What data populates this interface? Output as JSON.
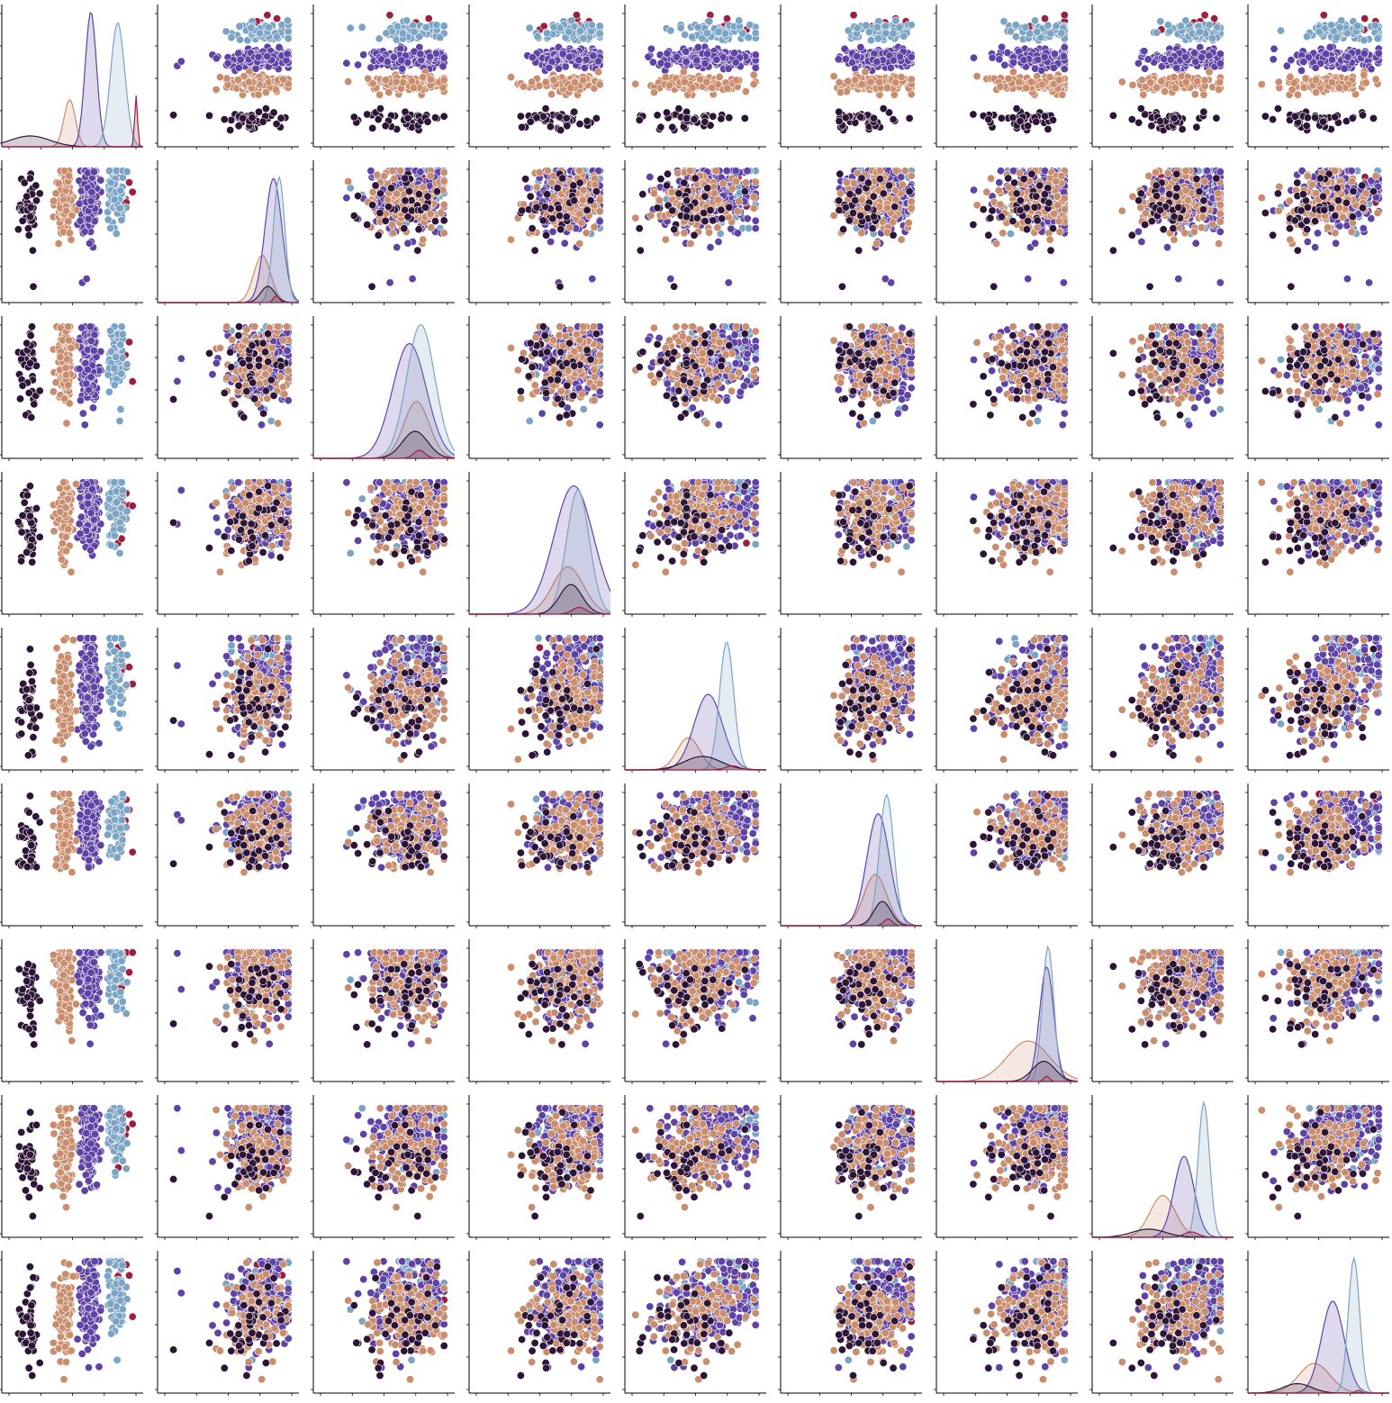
{
  "chart_data": {
    "type": "pairplot",
    "grid_size": 9,
    "variables": [
      "",
      "",
      "",
      "",
      "",
      "",
      "",
      "",
      ""
    ],
    "title": "",
    "axes": {
      "tick_labels_visible": false,
      "ticks_visible": true,
      "spines": [
        "left",
        "bottom"
      ],
      "grid": false
    },
    "hue": {
      "legend_visible": false,
      "palette": [
        "#2d1537",
        "#c98c6c",
        "#5e43a5",
        "#7ba3c4",
        "#9c1f3f"
      ],
      "group_weights": [
        0.08,
        0.27,
        0.45,
        0.18,
        0.02
      ],
      "group_levels": [
        0.12,
        0.43,
        0.66,
        0.9,
        0.99
      ]
    },
    "diagonal": {
      "kind": "kde",
      "fill": true,
      "fill_opacity": 0.2,
      "panels": [
        {
          "peaks": [
            0.2,
            0.48,
            0.63,
            0.82,
            0.95
          ],
          "widths": [
            0.14,
            0.04,
            0.04,
            0.05,
            0.01
          ],
          "heights": [
            0.08,
            0.35,
            1.0,
            0.92,
            0.38
          ]
        },
        {
          "peaks": [
            0.78,
            0.74,
            0.82,
            0.86,
            0.84
          ],
          "widths": [
            0.05,
            0.06,
            0.06,
            0.04,
            0.02
          ],
          "heights": [
            0.12,
            0.35,
            0.92,
            0.93,
            0.05
          ]
        },
        {
          "peaks": [
            0.72,
            0.73,
            0.68,
            0.76,
            0.75
          ],
          "widths": [
            0.09,
            0.09,
            0.12,
            0.1,
            0.04
          ],
          "heights": [
            0.2,
            0.42,
            0.85,
            0.99,
            0.06
          ]
        },
        {
          "peaks": [
            0.72,
            0.7,
            0.74,
            0.77,
            0.78
          ],
          "widths": [
            0.08,
            0.11,
            0.14,
            0.08,
            0.05
          ],
          "heights": [
            0.22,
            0.35,
            0.95,
            0.92,
            0.05
          ]
        },
        {
          "peaks": [
            0.55,
            0.45,
            0.59,
            0.72,
            0.76
          ],
          "widths": [
            0.13,
            0.08,
            0.1,
            0.05,
            0.05
          ],
          "heights": [
            0.1,
            0.24,
            0.56,
            0.95,
            0.03
          ]
        },
        {
          "peaks": [
            0.72,
            0.67,
            0.69,
            0.75,
            0.76
          ],
          "widths": [
            0.06,
            0.08,
            0.08,
            0.05,
            0.03
          ],
          "heights": [
            0.18,
            0.38,
            0.83,
            0.97,
            0.05
          ]
        },
        {
          "peaks": [
            0.76,
            0.65,
            0.78,
            0.79,
            0.78
          ],
          "widths": [
            0.08,
            0.15,
            0.05,
            0.04,
            0.02
          ],
          "heights": [
            0.15,
            0.3,
            0.85,
            1.0,
            0.04
          ]
        },
        {
          "peaks": [
            0.4,
            0.5,
            0.65,
            0.79,
            0.7
          ],
          "widths": [
            0.12,
            0.09,
            0.07,
            0.04,
            0.05
          ],
          "heights": [
            0.06,
            0.31,
            0.6,
            1.0,
            0.04
          ]
        },
        {
          "peaks": [
            0.35,
            0.47,
            0.6,
            0.75,
            0.78
          ],
          "widths": [
            0.1,
            0.11,
            0.08,
            0.04,
            0.02
          ],
          "heights": [
            0.07,
            0.22,
            0.68,
            1.0,
            0.02
          ]
        }
      ]
    },
    "off_diagonal": {
      "kind": "scatter",
      "marker": "o",
      "edgecolor": "#ffffff",
      "points_per_panel": 440
    }
  }
}
